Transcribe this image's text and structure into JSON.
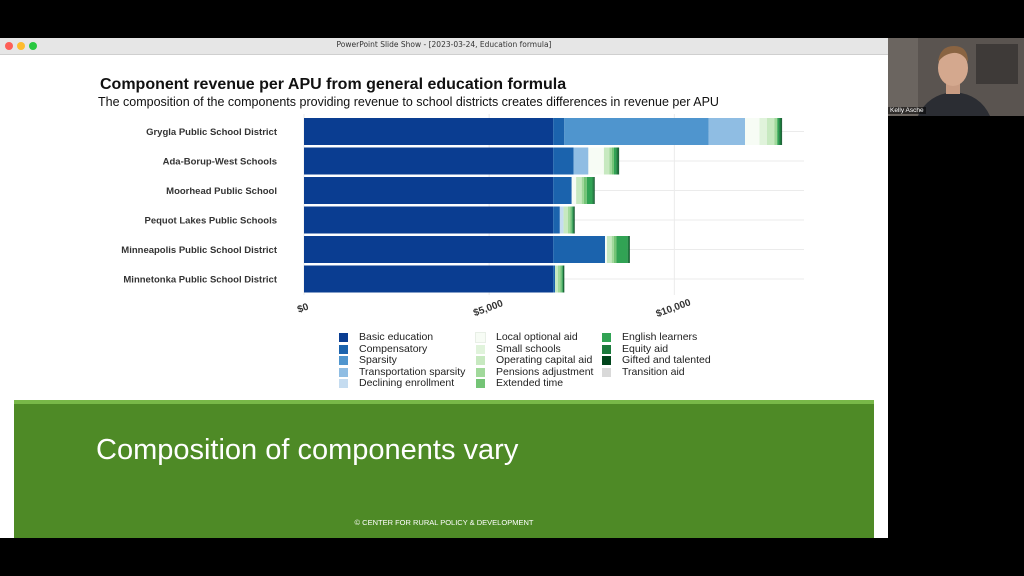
{
  "window": {
    "title": "PowerPoint Slide Show - [2023-03-24, Education formula]"
  },
  "slide": {
    "heading": "Composition of components vary",
    "copyright": "© CENTER FOR RURAL POLICY & DEVELOPMENT"
  },
  "video": {
    "participant_name": "Kelly Asche"
  },
  "chart_data": {
    "type": "bar",
    "orientation": "horizontal",
    "stacked": true,
    "title": "Component revenue per APU from general education formula",
    "subtitle": "The composition of the components providing revenue to school districts creates differences in revenue per APU",
    "categories": [
      "Grygla Public School District",
      "Ada-Borup-West Schools",
      "Moorhead Public School",
      "Pequot Lakes Public Schools",
      "Minneapolis Public School District",
      "Minnetonka Public School District"
    ],
    "xlim": [
      0,
      13500
    ],
    "xticks": [
      0,
      5000,
      10000
    ],
    "xtick_labels": [
      "$0",
      "$5,000",
      "$10,000"
    ],
    "grid": true,
    "legend_position": "bottom",
    "series": [
      {
        "name": "Basic education",
        "color": "#0a3d91",
        "values": [
          6728,
          6728,
          6728,
          6728,
          6728,
          6728
        ]
      },
      {
        "name": "Compensatory",
        "color": "#1b63ad",
        "values": [
          300,
          550,
          500,
          180,
          1400,
          50
        ]
      },
      {
        "name": "Sparsity",
        "color": "#4f95ce",
        "values": [
          3900,
          0,
          0,
          0,
          0,
          0
        ]
      },
      {
        "name": "Transportation sparsity",
        "color": "#8fbde3",
        "values": [
          980,
          400,
          0,
          0,
          0,
          0
        ]
      },
      {
        "name": "Declining enrollment",
        "color": "#c5dcf0",
        "values": [
          0,
          0,
          0,
          100,
          0,
          0
        ]
      },
      {
        "name": "Local optional aid",
        "color": "#f7fcf5",
        "values": [
          390,
          420,
          120,
          0,
          50,
          0
        ]
      },
      {
        "name": "Small schools",
        "color": "#e0f3db",
        "values": [
          200,
          0,
          0,
          0,
          0,
          0
        ]
      },
      {
        "name": "Operating capital aid",
        "color": "#c7e9c0",
        "values": [
          200,
          150,
          150,
          120,
          130,
          80
        ]
      },
      {
        "name": "Pensions adjustment",
        "color": "#a1d99b",
        "values": [
          80,
          60,
          60,
          60,
          60,
          60
        ]
      },
      {
        "name": "Extended time",
        "color": "#74c476",
        "values": [
          0,
          60,
          80,
          40,
          70,
          40
        ]
      },
      {
        "name": "English learners",
        "color": "#31a354",
        "values": [
          50,
          60,
          150,
          30,
          300,
          30
        ]
      },
      {
        "name": "Equity aid",
        "color": "#1b7a3c",
        "values": [
          60,
          60,
          40,
          30,
          40,
          20
        ]
      },
      {
        "name": "Gifted and talented",
        "color": "#00441b",
        "values": [
          20,
          20,
          20,
          20,
          20,
          20
        ]
      },
      {
        "name": "Transition aid",
        "color": "#d9d9d9",
        "values": [
          0,
          0,
          0,
          0,
          0,
          0
        ]
      }
    ]
  }
}
